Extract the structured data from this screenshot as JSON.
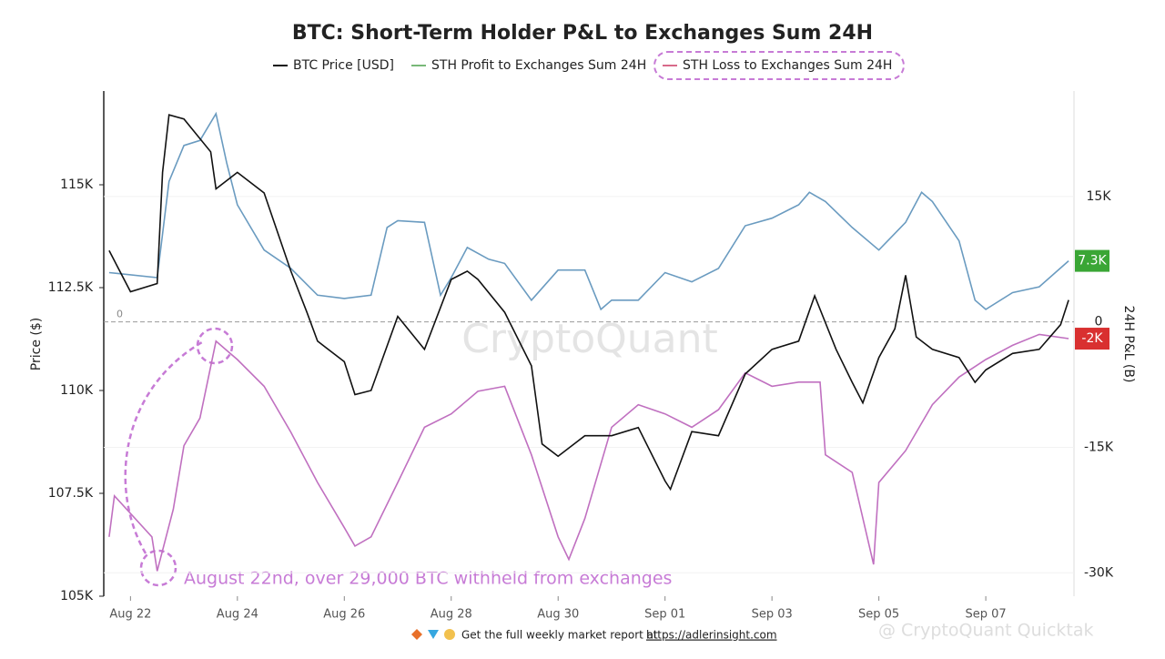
{
  "chart_data": {
    "type": "line",
    "title": "BTC: Short-Term Holder P&L to Exchanges Sum 24H",
    "ylabel": "Price ($)",
    "y2label": "24H P&L (B)",
    "xlim": [
      -0.5,
      17.65
    ],
    "xticks": [
      {
        "value": 0,
        "label": "Aug 22"
      },
      {
        "value": 2,
        "label": "Aug 24"
      },
      {
        "value": 4,
        "label": "Aug 26"
      },
      {
        "value": 6,
        "label": "Aug 28"
      },
      {
        "value": 8,
        "label": "Aug 30"
      },
      {
        "value": 10,
        "label": "Sep 01"
      },
      {
        "value": 12,
        "label": "Sep 03"
      },
      {
        "value": 14,
        "label": "Sep 05"
      },
      {
        "value": 16,
        "label": "Sep 07"
      }
    ],
    "ylim": [
      105000,
      117500
    ],
    "yticks": [
      {
        "value": 105000,
        "label": "105K"
      },
      {
        "value": 107500,
        "label": "107.5K"
      },
      {
        "value": 110000,
        "label": "110K"
      },
      {
        "value": 112500,
        "label": "112.5K"
      },
      {
        "value": 115000,
        "label": "115K"
      }
    ],
    "y2lim": [
      -32800,
      28700
    ],
    "y2ticks": [
      {
        "value": -30000,
        "label": "-30K"
      },
      {
        "value": -15000,
        "label": "-15K"
      },
      0,
      {
        "value": 15000,
        "label": "15K"
      }
    ],
    "series": [
      {
        "name": "BTC Price [USD]",
        "color": "#111111",
        "axis": "y",
        "x": [
          -0.4,
          0,
          0.5,
          0.6,
          0.72,
          1,
          1.5,
          1.6,
          2,
          2.5,
          3,
          3.3,
          3.5,
          4,
          4.2,
          4.5,
          5,
          5.5,
          6,
          6.3,
          6.5,
          7,
          7.5,
          7.7,
          8,
          8.5,
          9,
          9.5,
          10,
          10.1,
          10.5,
          11,
          11.5,
          12,
          12.5,
          12.8,
          13.2,
          13.5,
          13.7,
          14,
          14.3,
          14.5,
          14.7,
          15,
          15.5,
          15.8,
          16,
          16.5,
          17,
          17.4,
          17.55
        ],
        "values": [
          113400,
          112400,
          112600,
          115300,
          116700,
          116600,
          115800,
          114900,
          115300,
          114800,
          112900,
          111900,
          111200,
          110700,
          109900,
          110000,
          111800,
          111000,
          112700,
          112900,
          112700,
          111900,
          110600,
          108700,
          108400,
          108900,
          108900,
          109100,
          107800,
          107600,
          109000,
          108900,
          110400,
          111000,
          111200,
          112300,
          111000,
          110200,
          109700,
          110800,
          111500,
          112800,
          111300,
          111000,
          110800,
          110200,
          110500,
          110900,
          111000,
          111600,
          112200
        ]
      },
      {
        "name": "STH Profit to Exchanges Sum 24H",
        "color": "#6a9bc0",
        "legend_color": "#78b878",
        "axis": "y2",
        "x": [
          -0.4,
          0.5,
          0.72,
          1,
          1.3,
          1.6,
          1.8,
          2,
          2.5,
          3,
          3.5,
          4,
          4.5,
          4.8,
          5,
          5.5,
          5.8,
          6,
          6.3,
          6.7,
          7,
          7.5,
          8,
          8.5,
          8.8,
          9,
          9.5,
          10,
          10.5,
          11,
          11.5,
          12,
          12.5,
          12.7,
          13,
          13.5,
          14,
          14.5,
          14.8,
          15,
          15.5,
          15.8,
          16,
          16.5,
          17,
          17.55
        ],
        "values": [
          5900,
          5300,
          16800,
          21100,
          21700,
          24900,
          19000,
          14000,
          8600,
          6400,
          3200,
          2800,
          3200,
          11300,
          12100,
          11900,
          3200,
          5300,
          8900,
          7500,
          7000,
          2600,
          6200,
          6200,
          1500,
          2600,
          2600,
          5900,
          4800,
          6400,
          11500,
          12400,
          14000,
          15500,
          14400,
          11300,
          8600,
          11900,
          15500,
          14400,
          9700,
          2600,
          1500,
          3500,
          4200,
          7300
        ],
        "current": {
          "value": 7300,
          "label": "7.3K"
        },
        "badge_color": "#3aa635"
      },
      {
        "name": "STH Loss to Exchanges Sum 24H",
        "color": "#c070c0",
        "legend_color": "#d86a8a",
        "axis": "y2",
        "x": [
          -0.4,
          -0.3,
          0.4,
          0.5,
          0.8,
          1,
          1.3,
          1.6,
          2,
          2.5,
          3,
          3.5,
          4,
          4.2,
          4.5,
          5,
          5.5,
          6,
          6.5,
          7,
          7.5,
          8,
          8.2,
          8.5,
          9,
          9.5,
          10,
          10.5,
          11,
          11.5,
          12,
          12.5,
          12.9,
          13,
          13.5,
          13.9,
          14,
          14.5,
          15,
          15.5,
          16,
          16.5,
          17,
          17.55
        ],
        "values": [
          -25700,
          -20800,
          -25700,
          -29800,
          -22400,
          -14800,
          -11500,
          -2300,
          -4500,
          -7700,
          -13200,
          -19200,
          -24600,
          -26800,
          -25700,
          -19200,
          -12600,
          -11000,
          -8300,
          -7700,
          -15900,
          -25700,
          -28400,
          -23500,
          -12600,
          -9900,
          -11000,
          -12600,
          -10500,
          -6100,
          -7700,
          -7200,
          -7200,
          -15900,
          -18000,
          -29000,
          -19200,
          -15400,
          -9900,
          -6600,
          -4500,
          -2800,
          -1500,
          -2000
        ],
        "current": {
          "value": -2000,
          "label": "-2K"
        },
        "badge_color": "#d93030"
      }
    ],
    "annotation": "August 22nd, over 29,000 BTC withheld from exchanges",
    "watermark": "CryptoQuant",
    "footer": {
      "text": "Get the full weekly market report at",
      "link": "https://adlerinsight.com"
    },
    "source": "@ CryptoQuant Quicktak"
  }
}
